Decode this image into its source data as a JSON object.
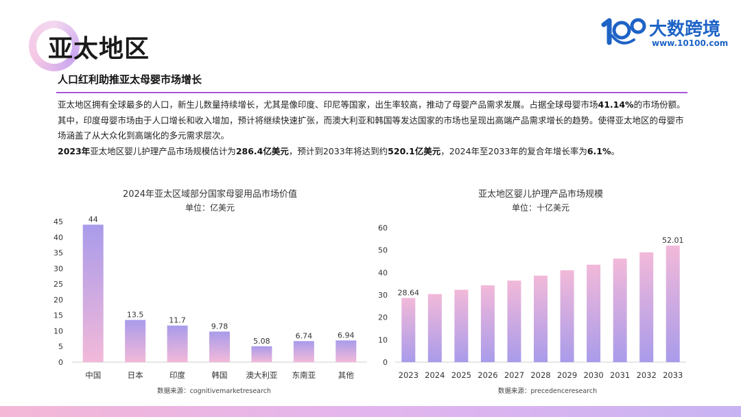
{
  "header": {
    "title": "亚太地区",
    "subtitle": "人口红利助推亚太母婴市场增长"
  },
  "logo": {
    "text": "大数跨境",
    "url": "www.10100.com"
  },
  "paragraph": {
    "p1_a": "亚太地区拥有全球最多的人口，新生儿数量持续增长，尤其是像印度、印尼等国家，出生率较高，推动了母婴产品需求发展。占据全球母婴市场",
    "p1_b": "41.14%",
    "p1_c": "的市场份额。其中，印度母婴市场由于人口增长和收入增加，预计将继续快速扩张，而澳大利亚和韩国等发达国家的市场也呈现出高端产品需求增长的趋势。使得亚太地区的母婴市场涵盖了从大众化到高端化的多元需求层次。",
    "p2_a": "2023年",
    "p2_b": "亚太地区婴儿护理产品市场规模估计为",
    "p2_c": "286.4亿美元",
    "p2_d": "，预计到2033年将达到约",
    "p2_e": "520.1亿美元",
    "p2_f": "，2024年至2033年的复合年增长率为",
    "p2_g": "6.1%",
    "p2_h": "。"
  },
  "colors": {
    "accent": "#a855d6",
    "bar_top": "#a99bea",
    "bar_bottom": "#f2b9d9"
  },
  "chart_data": [
    {
      "type": "bar",
      "title": "2024年亚太区域部分国家母婴用品市场价值",
      "subtitle": "单位：亿美元",
      "categories": [
        "中国",
        "日本",
        "印度",
        "韩国",
        "澳大利亚",
        "东南亚",
        "其他"
      ],
      "values": [
        44,
        13.5,
        11.7,
        9.78,
        5.08,
        6.74,
        6.94
      ],
      "value_labels": [
        "44",
        "13.5",
        "11.7",
        "9.78",
        "5.08",
        "6.74",
        "6.94"
      ],
      "ylim": [
        0,
        45
      ],
      "yticks": [
        "0",
        "5",
        "10",
        "15",
        "20",
        "25",
        "30",
        "35",
        "40",
        "45"
      ],
      "gradient": "purple-top",
      "source": "数据来源：cognitivemarketresearch"
    },
    {
      "type": "bar",
      "title": "亚太地区婴儿护理产品市场规模",
      "subtitle": "单位：十亿美元",
      "categories": [
        "2023",
        "2024",
        "2025",
        "2026",
        "2027",
        "2028",
        "2029",
        "2030",
        "2031",
        "2032",
        "2033"
      ],
      "values": [
        28.64,
        30.4,
        32.3,
        34.3,
        36.4,
        38.6,
        41.0,
        43.5,
        46.2,
        49.0,
        52.01
      ],
      "value_labels": [
        "28.64",
        "",
        "",
        "",
        "",
        "",
        "",
        "",
        "",
        "",
        "52.01"
      ],
      "ylim": [
        0,
        60
      ],
      "yticks": [
        "0",
        "10",
        "20",
        "30",
        "40",
        "50",
        "60"
      ],
      "gradient": "pink-top",
      "source": "数据来源：precedenceresearch"
    }
  ]
}
